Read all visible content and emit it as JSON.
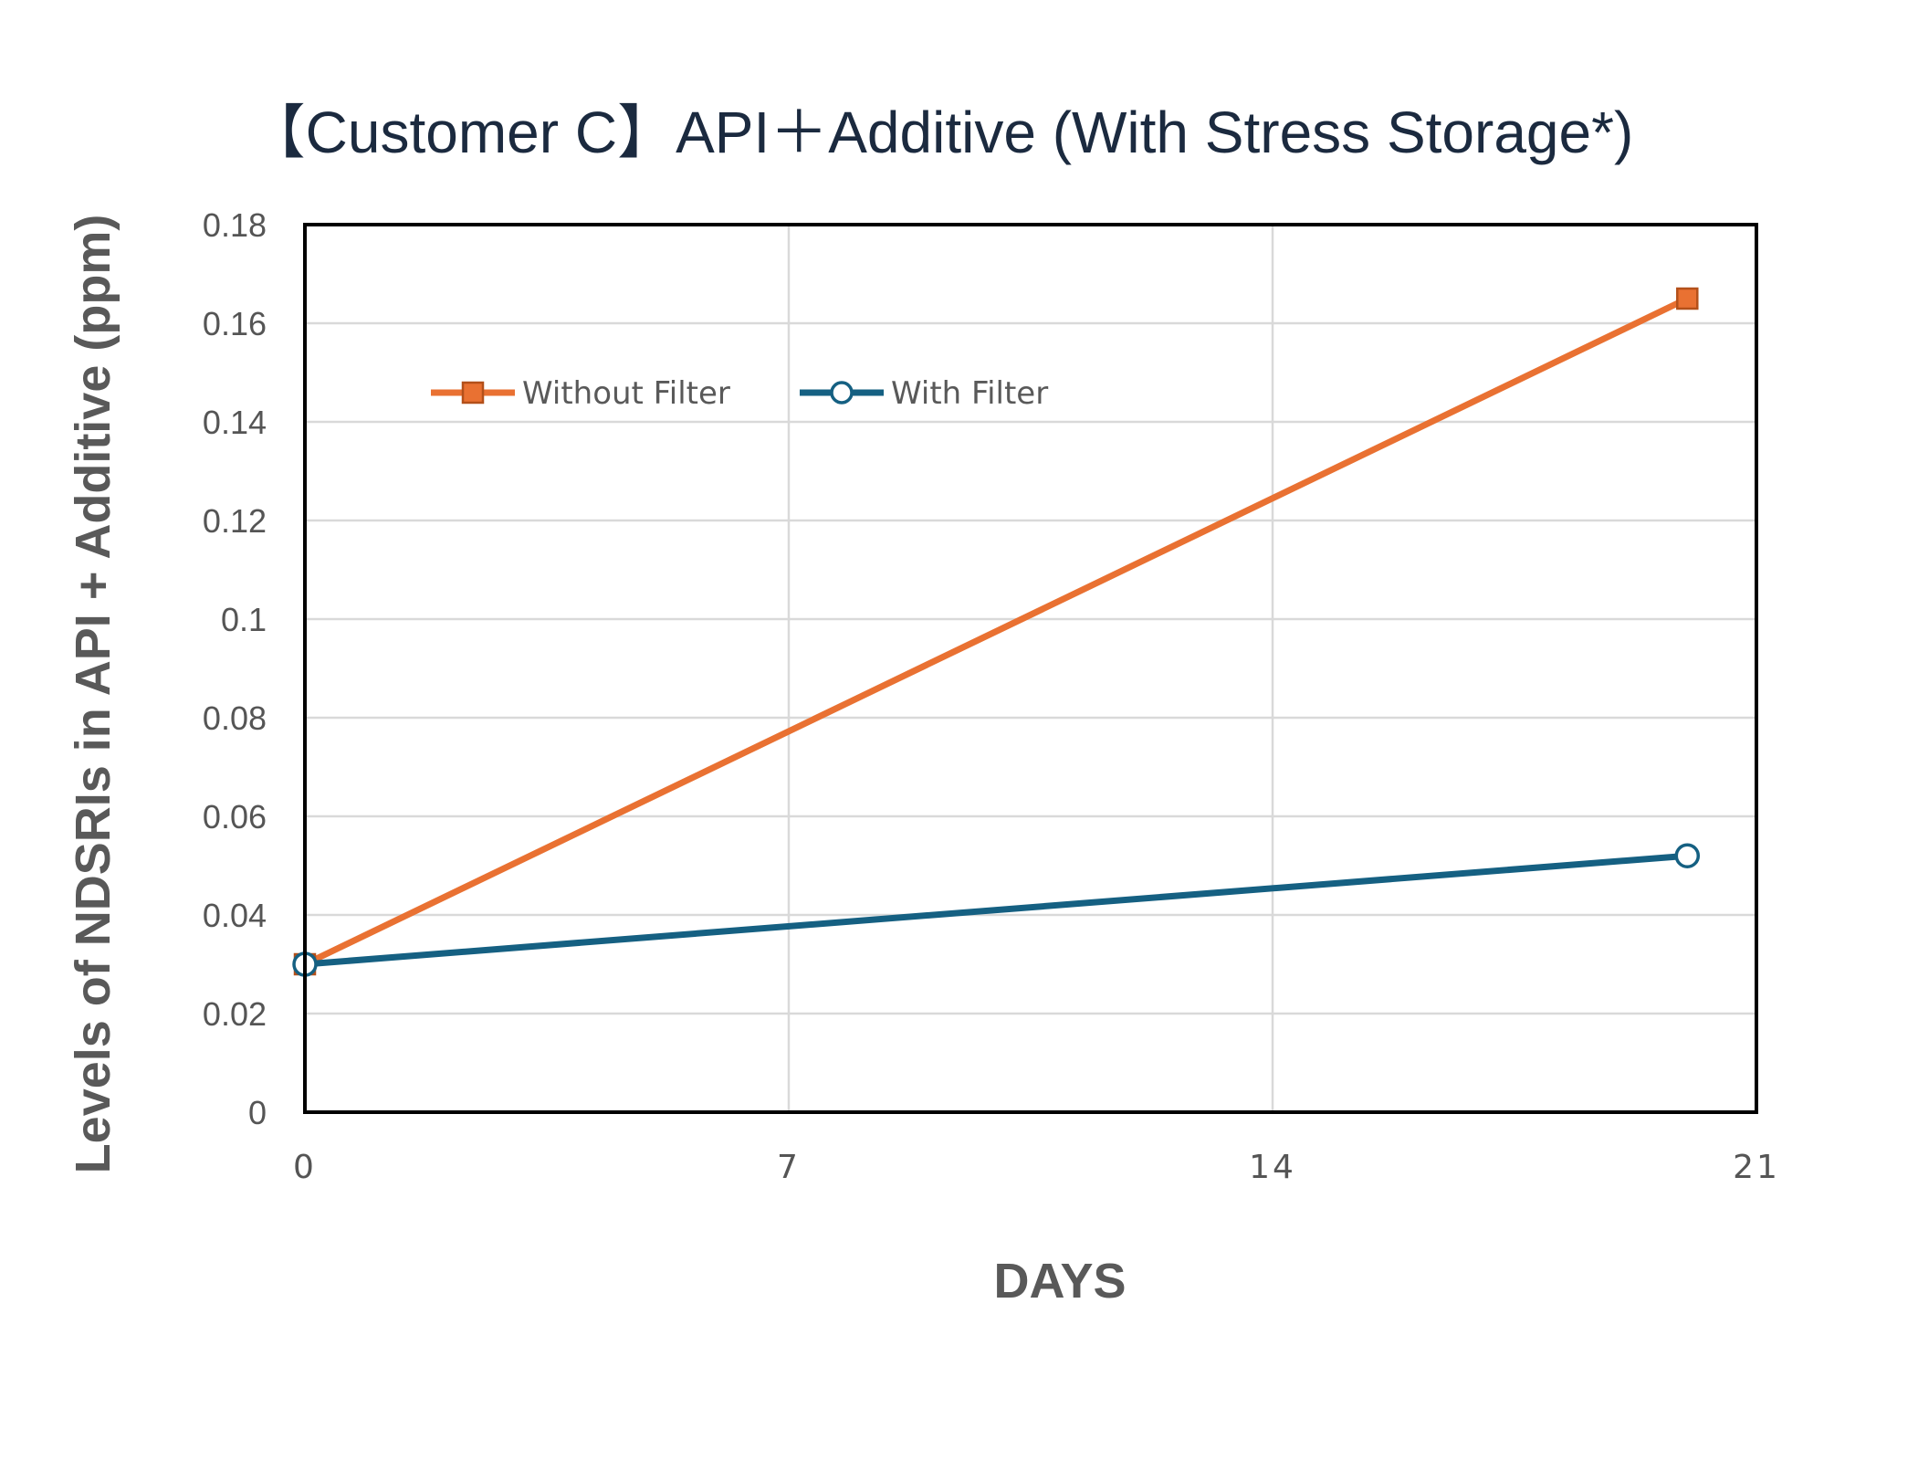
{
  "chart_data": {
    "type": "line",
    "title": "【Customer C】API＋Additive (With Stress Storage*)",
    "xlabel": "DAYS",
    "ylabel": "Levels of NDSRIs in API + Additive (ppm)",
    "xlim": [
      0,
      21
    ],
    "ylim": [
      0,
      0.18
    ],
    "xticks": [
      0,
      7,
      14,
      21
    ],
    "xtick_labels": [
      "0",
      "7",
      "14",
      "21"
    ],
    "yticks": [
      0,
      0.02,
      0.04,
      0.06,
      0.08,
      0.1,
      0.12,
      0.14,
      0.16,
      0.18
    ],
    "ytick_labels": [
      "0",
      "0.02",
      "0.04",
      "0.06",
      "0.08",
      "0.1",
      "0.12",
      "0.14",
      "0.16",
      "0.18"
    ],
    "grid": true,
    "legend_position": "top-left",
    "series": [
      {
        "name": "Without Filter",
        "color": "#e97132",
        "marker": "square",
        "x": [
          0,
          20
        ],
        "y": [
          0.03,
          0.165
        ]
      },
      {
        "name": "With Filter",
        "color": "#156082",
        "marker": "circle",
        "x": [
          0,
          20
        ],
        "y": [
          0.03,
          0.052
        ]
      }
    ]
  }
}
